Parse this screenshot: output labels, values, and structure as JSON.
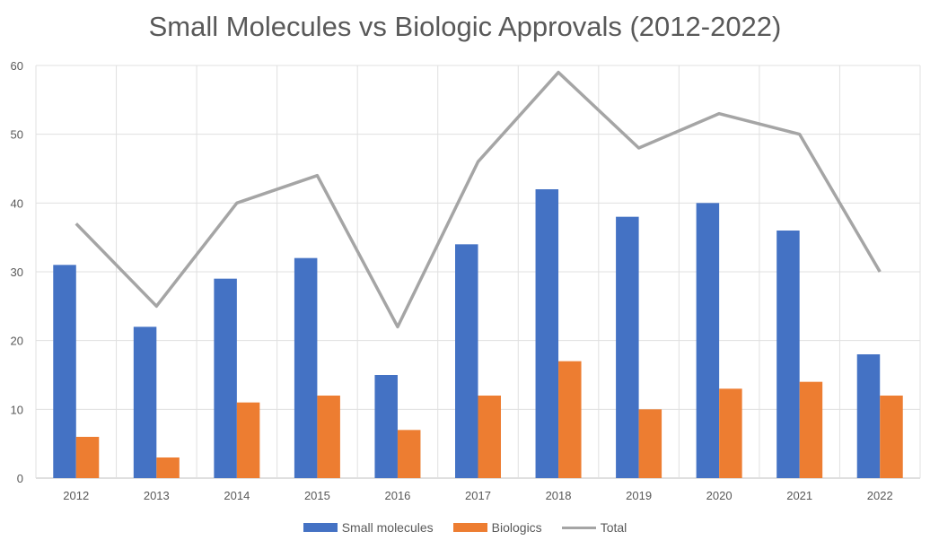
{
  "chart_data": {
    "type": "bar",
    "title": "Small Molecules vs Biologic Approvals (2012-2022)",
    "categories": [
      "2012",
      "2013",
      "2014",
      "2015",
      "2016",
      "2017",
      "2018",
      "2019",
      "2020",
      "2021",
      "2022"
    ],
    "series": [
      {
        "name": "Small molecules",
        "kind": "bar",
        "color": "#4472c4",
        "values": [
          31,
          22,
          29,
          32,
          15,
          34,
          42,
          38,
          40,
          36,
          18
        ]
      },
      {
        "name": "Biologics",
        "kind": "bar",
        "color": "#ed7d31",
        "values": [
          6,
          3,
          11,
          12,
          7,
          12,
          17,
          10,
          13,
          14,
          12
        ]
      },
      {
        "name": "Total",
        "kind": "line",
        "color": "#a5a5a5",
        "values": [
          37,
          25,
          40,
          44,
          22,
          46,
          59,
          48,
          53,
          50,
          30
        ]
      }
    ],
    "ylim": [
      0,
      60
    ],
    "yticks": [
      0,
      10,
      20,
      30,
      40,
      50,
      60
    ],
    "grid": true,
    "legend": "bottom"
  }
}
